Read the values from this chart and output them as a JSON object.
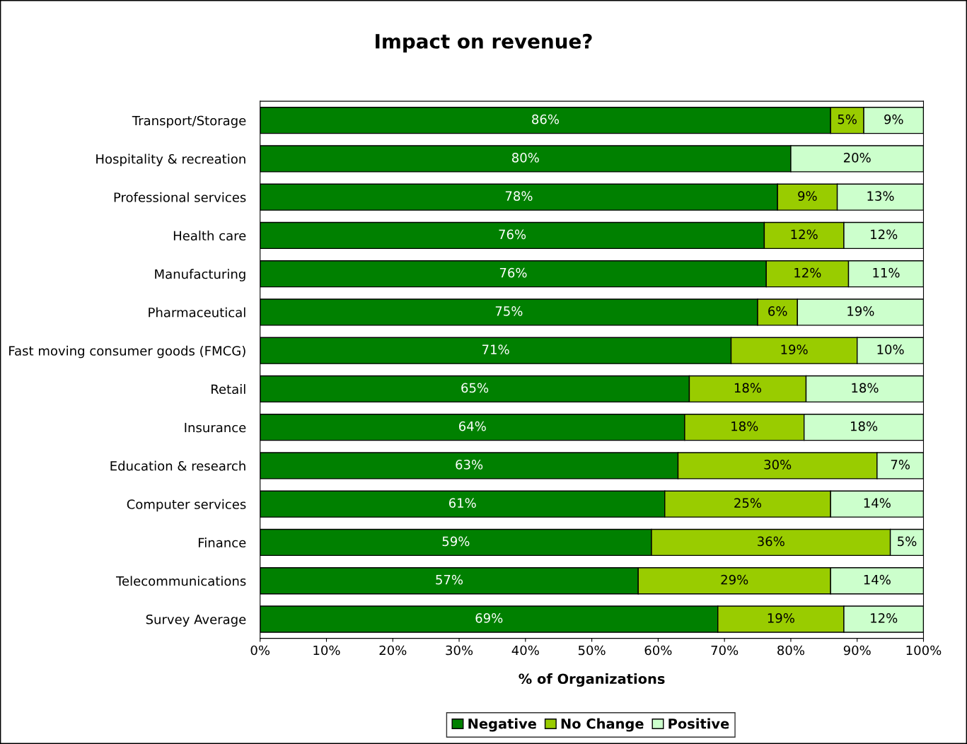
{
  "chart_data": {
    "type": "bar",
    "orientation": "horizontal",
    "stacked": true,
    "title": "Impact on revenue?",
    "xlabel": "% of Organizations",
    "categories": [
      "Transport/Storage",
      "Hospitality & recreation",
      "Professional services",
      "Health care",
      "Manufacturing",
      "Pharmaceutical",
      "Fast moving consumer goods (FMCG)",
      "Retail",
      "Insurance",
      "Education & research",
      "Computer services",
      "Finance",
      "Telecommunications",
      "Survey Average"
    ],
    "series": [
      {
        "name": "Negative",
        "color": "#008000",
        "values": [
          86,
          80,
          78,
          76,
          76.3,
          75,
          71,
          64.7,
          64,
          63,
          61,
          59,
          57,
          69
        ],
        "value_labels": [
          "86%",
          "80%",
          "78%",
          "76%",
          "76%",
          "75%",
          "71%",
          "65%",
          "64%",
          "63%",
          "61%",
          "59%",
          "57%",
          "69%"
        ]
      },
      {
        "name": "No Change",
        "color": "#99cc00",
        "values": [
          5,
          null,
          9,
          12,
          12.4,
          6,
          19,
          17.6,
          18,
          30,
          25,
          36,
          29,
          19
        ],
        "value_labels": [
          "5%",
          null,
          "9%",
          "12%",
          "12%",
          "6%",
          "19%",
          "18%",
          "18%",
          "30%",
          "25%",
          "36%",
          "29%",
          "19%"
        ]
      },
      {
        "name": "Positive",
        "color": "#ccffcc",
        "values": [
          9,
          20,
          13,
          12,
          11.3,
          19,
          10,
          17.7,
          18,
          7,
          14,
          5,
          14,
          12
        ],
        "value_labels": [
          "9%",
          "20%",
          "13%",
          "12%",
          "11%",
          "19%",
          "10%",
          "18%",
          "18%",
          "7%",
          "14%",
          "5%",
          "14%",
          "12%"
        ]
      }
    ],
    "xlim": [
      0,
      100
    ],
    "xticks": [
      {
        "value": 0,
        "label": "0%"
      },
      {
        "value": 10,
        "label": "10%"
      },
      {
        "value": 20,
        "label": "20%"
      },
      {
        "value": 30,
        "label": "30%"
      },
      {
        "value": 40,
        "label": "40%"
      },
      {
        "value": 50,
        "label": "50%"
      },
      {
        "value": 60,
        "label": "60%"
      },
      {
        "value": 70,
        "label": "70%"
      },
      {
        "value": 80,
        "label": "80%"
      },
      {
        "value": 90,
        "label": "90%"
      },
      {
        "value": 100,
        "label": "100%"
      }
    ],
    "legend": "bottom",
    "grid": false
  }
}
